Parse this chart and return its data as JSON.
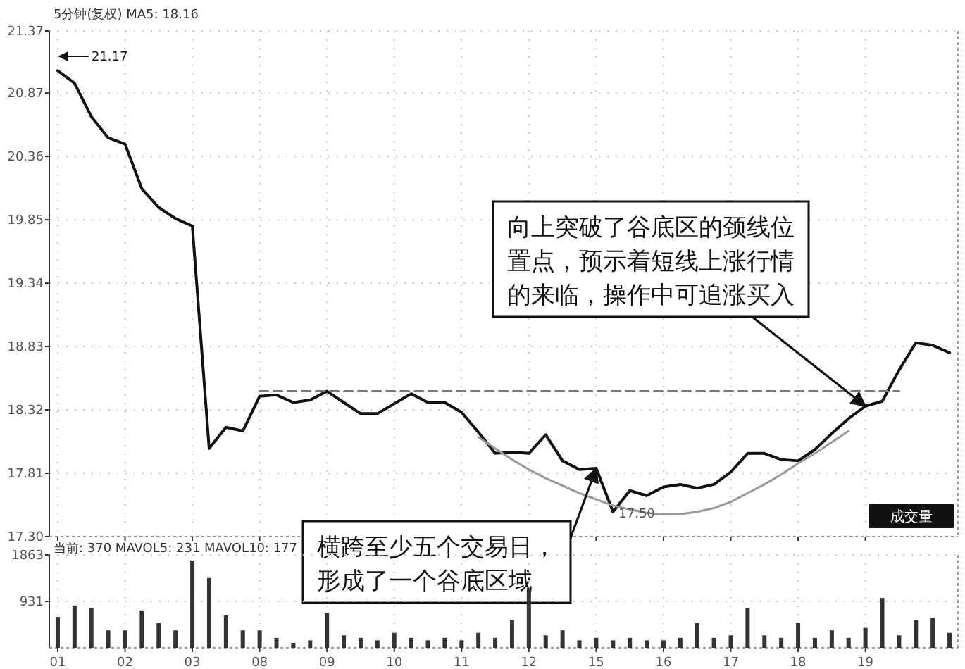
{
  "chart_data": [
    {
      "type": "line",
      "title": "5分钟(复权) MA5: 18.16",
      "categories": [
        "01",
        null,
        null,
        null,
        "02",
        null,
        null,
        null,
        "03",
        null,
        null,
        null,
        "08",
        null,
        null,
        null,
        "09",
        null,
        null,
        null,
        "10",
        null,
        null,
        null,
        "11",
        null,
        null,
        null,
        "12",
        null,
        null,
        null,
        "15",
        null,
        null,
        null,
        "16",
        null,
        null,
        null,
        "17",
        null,
        null,
        null,
        "18",
        null,
        null,
        null,
        "19",
        null,
        null,
        null,
        null,
        null
      ],
      "ylim": [
        17.3,
        21.37
      ],
      "yticks": [
        21.37,
        20.87,
        20.36,
        19.85,
        19.34,
        18.83,
        18.32,
        17.81,
        {
          "value": 17.3,
          "label": "17.30"
        }
      ],
      "tick_labels": "y",
      "grid": true,
      "series": [
        {
          "color": "#111111",
          "values": [
            21.05,
            20.95,
            20.68,
            20.51,
            20.46,
            20.1,
            19.95,
            19.86,
            19.8,
            18.01,
            18.18,
            18.15,
            18.43,
            18.44,
            18.38,
            18.4,
            18.47,
            18.38,
            18.29,
            18.29,
            18.37,
            18.45,
            18.38,
            18.38,
            18.3,
            18.14,
            17.97,
            17.98,
            17.97,
            18.12,
            17.91,
            17.84,
            17.85,
            17.5,
            17.67,
            17.63,
            17.7,
            17.72,
            17.69,
            17.72,
            17.82,
            17.97,
            17.97,
            17.92,
            17.91,
            18.0,
            18.13,
            18.25,
            18.35,
            18.39,
            18.64,
            18.86,
            18.84,
            18.78
          ]
        },
        {
          "color": "#999999",
          "values": [
            null,
            null,
            null,
            null,
            null,
            null,
            null,
            null,
            null,
            null,
            null,
            null,
            null,
            null,
            null,
            null,
            null,
            null,
            null,
            null,
            null,
            null,
            null,
            null,
            null,
            18.1,
            18.01,
            17.92,
            17.84,
            17.77,
            17.71,
            17.65,
            17.6,
            17.55,
            17.52,
            17.49,
            17.48,
            17.48,
            17.5,
            17.53,
            17.58,
            17.65,
            17.72,
            17.8,
            17.89,
            17.97,
            18.06,
            18.15,
            null,
            null,
            null,
            null,
            null,
            null
          ]
        },
        {
          "color": "#777777",
          "line_style": "dashed",
          "values": [
            null,
            null,
            null,
            null,
            null,
            null,
            null,
            null,
            null,
            null,
            null,
            null,
            18.47,
            18.47,
            18.47,
            18.47,
            18.47,
            18.47,
            18.47,
            18.47,
            18.47,
            18.47,
            18.47,
            18.47,
            18.47,
            18.47,
            18.47,
            18.47,
            18.47,
            18.47,
            18.47,
            18.47,
            18.47,
            18.47,
            18.47,
            18.47,
            18.47,
            18.47,
            18.47,
            18.47,
            18.47,
            18.47,
            18.47,
            18.47,
            18.47,
            18.47,
            18.47,
            18.47,
            18.47,
            18.47,
            18.47,
            null,
            null,
            null
          ]
        }
      ],
      "annotations": [
        "21.17",
        "17.50",
        {
          "text": "向上突破了谷底区的颈线位置点，预示着短线上涨行情的来临，操作中可追涨买入",
          "x": "19",
          "y": 18.35
        },
        {
          "text": "横跨至少五个交易日，形成了一个谷底区域",
          "x": "15",
          "y": 17.85
        },
        "成交量"
      ]
    },
    {
      "type": "bar",
      "title": "当前: 370 MAVOL5: 231 MAVOL10: 177",
      "categories": [
        "01",
        null,
        null,
        null,
        "02",
        null,
        null,
        null,
        "03",
        null,
        null,
        null,
        "08",
        null,
        null,
        null,
        "09",
        null,
        null,
        null,
        "10",
        null,
        null,
        null,
        "11",
        null,
        null,
        null,
        "12",
        null,
        null,
        null,
        "15",
        null,
        null,
        null,
        "16",
        null,
        null,
        null,
        "17",
        null,
        null,
        null,
        "18",
        null,
        null,
        null,
        "19",
        null,
        null,
        null,
        null,
        null
      ],
      "ylim": [
        0,
        1863
      ],
      "yticks": [
        931,
        1863
      ],
      "grid": true,
      "color": "#333333",
      "values": [
        620,
        850,
        800,
        350,
        350,
        750,
        500,
        350,
        1750,
        1400,
        650,
        350,
        350,
        200,
        100,
        150,
        700,
        250,
        200,
        150,
        300,
        200,
        150,
        200,
        150,
        300,
        200,
        550,
        1200,
        250,
        350,
        150,
        200,
        150,
        200,
        150,
        150,
        200,
        500,
        200,
        250,
        800,
        250,
        200,
        500,
        200,
        350,
        200,
        400,
        1000,
        250,
        550,
        600,
        300
      ]
    }
  ]
}
